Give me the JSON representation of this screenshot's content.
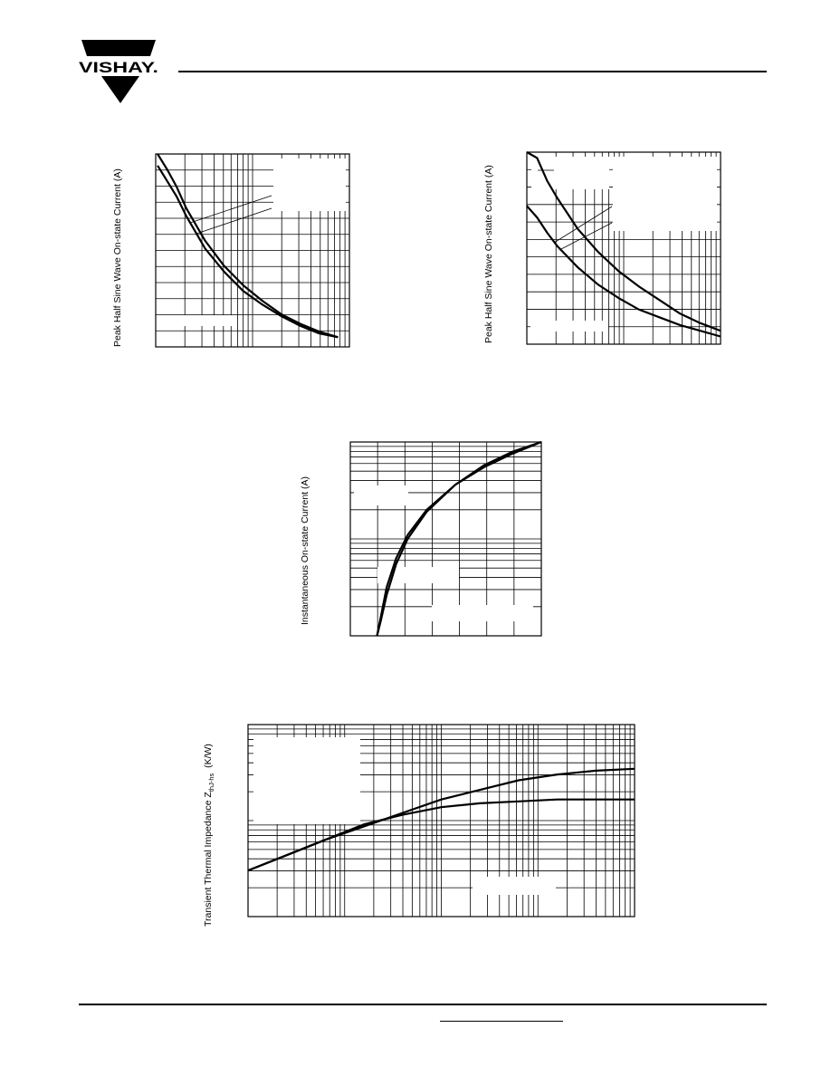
{
  "header": {
    "brand": "VISHAY."
  },
  "colors": {
    "ink": "#000000",
    "background": "#ffffff"
  },
  "chart_data": [
    {
      "type": "line",
      "id": "fig1",
      "ylabel": "Peak Half Sine Wave On-state Current (A)",
      "xscale": "log",
      "x_units": "decades",
      "x": [
        0.0,
        0.1,
        0.2,
        0.3,
        0.5,
        0.7,
        0.9,
        1.1,
        1.3,
        1.5,
        1.7,
        1.9
      ],
      "series": [
        {
          "values": [
            0.94,
            0.86,
            0.78,
            0.68,
            0.51,
            0.39,
            0.29,
            0.22,
            0.16,
            0.11,
            0.07,
            0.05
          ]
        },
        {
          "values": [
            1.0,
            0.92,
            0.83,
            0.72,
            0.55,
            0.42,
            0.32,
            0.24,
            0.17,
            0.12,
            0.08,
            0.05
          ]
        }
      ]
    },
    {
      "type": "line",
      "id": "fig2",
      "ylabel": "Peak Half Sine Wave On-state Current (A)",
      "xscale": "log",
      "x_units": "decades",
      "x": [
        0.0,
        0.1,
        0.2,
        0.3,
        0.5,
        0.7,
        0.9,
        1.1,
        1.3,
        1.5,
        1.7,
        1.9
      ],
      "series": [
        {
          "values": [
            0.72,
            0.66,
            0.58,
            0.51,
            0.4,
            0.31,
            0.24,
            0.18,
            0.14,
            0.1,
            0.07,
            0.04
          ]
        },
        {
          "values": [
            1.0,
            0.97,
            0.85,
            0.76,
            0.6,
            0.48,
            0.38,
            0.3,
            0.23,
            0.16,
            0.11,
            0.07
          ]
        }
      ]
    },
    {
      "type": "line",
      "id": "fig3",
      "ylabel": "Instantaneous On-state Current (A)",
      "xscale": "linear",
      "yscale": "log",
      "x": [
        0.14,
        0.16,
        0.19,
        0.24,
        0.3,
        0.4,
        0.55,
        0.7,
        0.85,
        1.0
      ],
      "series": [
        {
          "values": [
            0.0,
            0.1,
            0.25,
            0.4,
            0.52,
            0.65,
            0.78,
            0.87,
            0.94,
            1.0
          ]
        },
        {
          "values": [
            0.0,
            0.08,
            0.21,
            0.37,
            0.5,
            0.64,
            0.78,
            0.88,
            0.95,
            1.0
          ]
        }
      ]
    },
    {
      "type": "line",
      "id": "fig4",
      "ylabel_main": "Transient Thermal Impedance Z",
      "ylabel_sub": "thJ-hs",
      "ylabel_unit": "(K/W)",
      "xscale": "log",
      "yscale": "log",
      "x": [
        0.0,
        0.1,
        0.2,
        0.3,
        0.4,
        0.5,
        0.6,
        0.7,
        0.8,
        0.9,
        1.0
      ],
      "series": [
        {
          "values": [
            0.24,
            0.32,
            0.4,
            0.47,
            0.54,
            0.61,
            0.66,
            0.71,
            0.74,
            0.76,
            0.77
          ]
        },
        {
          "values": [
            0.24,
            0.32,
            0.4,
            0.48,
            0.53,
            0.57,
            0.59,
            0.6,
            0.61,
            0.61,
            0.61
          ]
        }
      ]
    }
  ]
}
